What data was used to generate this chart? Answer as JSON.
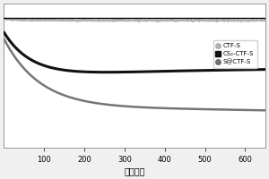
{
  "xlabel": "循环次数",
  "xlim": [
    0,
    650
  ],
  "ylim": [
    0.0,
    1.12
  ],
  "xticks": [
    100,
    200,
    300,
    400,
    500,
    600
  ],
  "legend": [
    "CTF-S",
    "CS₂-CTF-S",
    "S@CTF-S"
  ],
  "background_color": "#f0f0f0",
  "plot_bg": "#ffffff",
  "line_colors": {
    "CTF-S": "#aaaaaa",
    "CS2-CTF-S": "#111111",
    "S@CTF-S": "#666666"
  },
  "line_widths": {
    "CTF-S": 1.5,
    "CS2-CTF-S": 2.2,
    "S@CTF-S": 1.8
  },
  "marker_styles": {
    "CTF-S": "o",
    "CS2-CTF-S": "s",
    "S@CTF-S": "o"
  }
}
